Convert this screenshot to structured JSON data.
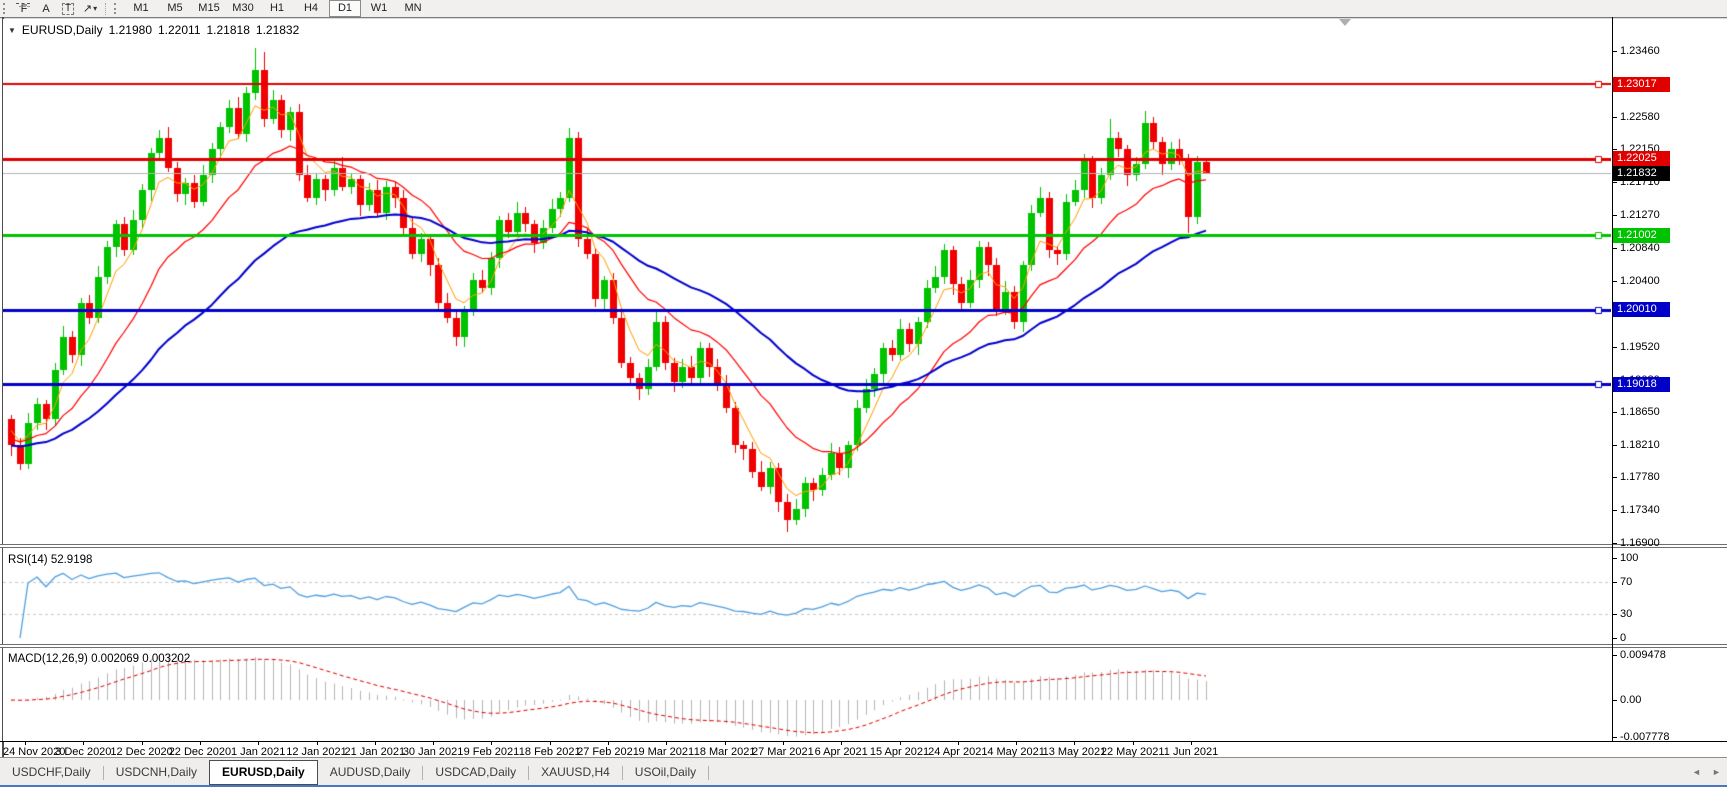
{
  "toolbar": {
    "tools": [
      {
        "name": "fibonacci-tool",
        "glyph": "F"
      },
      {
        "name": "text-tool",
        "glyph": "A"
      },
      {
        "name": "text-label-tool",
        "glyph": "T"
      },
      {
        "name": "arrows-tool",
        "glyph": "↗"
      }
    ],
    "dropdown_caret": "▾",
    "timeframes": [
      {
        "label": "M1",
        "active": false
      },
      {
        "label": "M5",
        "active": false
      },
      {
        "label": "M15",
        "active": false
      },
      {
        "label": "M30",
        "active": false
      },
      {
        "label": "H1",
        "active": false
      },
      {
        "label": "H4",
        "active": false
      },
      {
        "label": "D1",
        "active": true
      },
      {
        "label": "W1",
        "active": false
      },
      {
        "label": "MN",
        "active": false
      }
    ]
  },
  "chart": {
    "collapse_glyph": "▼",
    "symbol_period": "EURUSD,Daily",
    "open": "1.21980",
    "high": "1.22011",
    "low": "1.21818",
    "close": "1.21832",
    "price_ticks": [
      "1.23460",
      "1.23020",
      "1.22580",
      "1.22150",
      "1.21710",
      "1.21270",
      "1.20840",
      "1.20400",
      "1.19960",
      "1.19520",
      "1.19080",
      "1.18650",
      "1.18210",
      "1.17780",
      "1.17340",
      "1.16900"
    ],
    "hlines": [
      {
        "label": "1.23017",
        "price": 1.23017,
        "color": "#e00000",
        "thickness": 2
      },
      {
        "label": "1.22025",
        "price": 1.22025,
        "color": "#e00000",
        "thickness": 3
      },
      {
        "label": "1.21002",
        "price": 1.21002,
        "color": "#00c300",
        "thickness": 3
      },
      {
        "label": "1.20010",
        "price": 1.2001,
        "color": "#0000c8",
        "thickness": 3
      },
      {
        "label": "1.19018",
        "price": 1.19018,
        "color": "#0000c8",
        "thickness": 3
      }
    ],
    "current": {
      "label": "1.21832",
      "price": 1.21832,
      "badge_color": "#000000",
      "line_color": "#b3b3b3"
    },
    "candle_up_color": "#00c300",
    "candle_down_color": "#f00000"
  },
  "rsi": {
    "label": "RSI(14) 52.9198",
    "axis": [
      {
        "label": "100",
        "value": 100
      },
      {
        "label": "70",
        "value": 70
      },
      {
        "label": "30",
        "value": 30
      },
      {
        "label": "0",
        "value": 0
      }
    ],
    "levels": [
      70,
      30
    ],
    "line_color": "#4f9fe0",
    "level_color": "#c9c9c9"
  },
  "macd": {
    "label": "MACD(12,26,9) 0.002069 0.003202",
    "axis": [
      {
        "label": "0.009478",
        "value": 0.009478
      },
      {
        "label": "0.00",
        "value": 0.0
      },
      {
        "label": "-0.007778",
        "value": -0.007778
      }
    ],
    "histogram_color": "#b5b5b5",
    "signal_color": "#e00000"
  },
  "tabs": [
    {
      "label": "USDCHF,Daily",
      "active": false
    },
    {
      "label": "USDCNH,Daily",
      "active": false
    },
    {
      "label": "EURUSD,Daily",
      "active": true
    },
    {
      "label": "AUDUSD,Daily",
      "active": false
    },
    {
      "label": "USDCAD,Daily",
      "active": false
    },
    {
      "label": "XAUUSD,H4",
      "active": false
    },
    {
      "label": "USOil,Daily",
      "active": false
    }
  ],
  "tab_scroll": {
    "left": "◄",
    "right": "►"
  },
  "chart_data": {
    "type": "candlestick",
    "symbol": "EURUSD",
    "period": "Daily",
    "last_bar": {
      "open": 1.2198,
      "high": 1.22011,
      "low": 1.21818,
      "close": 1.21832
    },
    "y_visible": [
      1.1687,
      1.2389
    ],
    "x_labels": [
      "24 Nov 2020",
      "3 Dec 2020",
      "12 Dec 2020",
      "22 Dec 2020",
      "1 Jan 2021",
      "12 Jan 2021",
      "21 Jan 2021",
      "30 Jan 2021",
      "9 Feb 2021",
      "18 Feb 2021",
      "27 Feb 2021",
      "9 Mar 2021",
      "18 Mar 2021",
      "27 Mar 2021",
      "6 Apr 2021",
      "15 Apr 2021",
      "24 Apr 2021",
      "4 May 2021",
      "13 May 2021",
      "22 May 2021",
      "1 Jun 2021"
    ],
    "overlays": [
      {
        "name": "ma-fast",
        "type": "ema",
        "period": 5,
        "color": "#ff9d00",
        "width": 1,
        "seed": 1.185
      },
      {
        "name": "ma-medium",
        "type": "ema",
        "period": 16,
        "color": "#ff0000",
        "width": 1.2,
        "seed": 1.183
      },
      {
        "name": "ma-slow",
        "type": "ema",
        "period": 40,
        "color": "#0000cc",
        "width": 2,
        "seed": 1.182
      }
    ],
    "indicators": [
      {
        "name": "RSI",
        "params": [
          14
        ],
        "value": 52.9198
      },
      {
        "name": "MACD",
        "params": [
          12,
          26,
          9
        ],
        "values": [
          0.002069,
          0.003202
        ]
      }
    ],
    "candles": [
      [
        1.1855,
        1.1861,
        1.1806,
        1.182
      ],
      [
        1.182,
        1.183,
        1.1787,
        1.1795
      ],
      [
        1.1795,
        1.1864,
        1.1789,
        1.185
      ],
      [
        1.185,
        1.1883,
        1.184,
        1.1875
      ],
      [
        1.1875,
        1.1881,
        1.1841,
        1.1855
      ],
      [
        1.1855,
        1.193,
        1.1847,
        1.192
      ],
      [
        1.192,
        1.1979,
        1.1914,
        1.1965
      ],
      [
        1.1965,
        1.1973,
        1.193,
        1.194
      ],
      [
        1.194,
        1.2016,
        1.1926,
        1.201
      ],
      [
        1.201,
        1.202,
        1.1982,
        1.199
      ],
      [
        1.199,
        1.2059,
        1.1984,
        1.2045
      ],
      [
        1.2045,
        1.2093,
        1.2035,
        1.2085
      ],
      [
        1.2085,
        1.2121,
        1.2071,
        1.2115
      ],
      [
        1.2115,
        1.2125,
        1.2072,
        1.208
      ],
      [
        1.208,
        1.2134,
        1.2074,
        1.212
      ],
      [
        1.212,
        1.2168,
        1.211,
        1.216
      ],
      [
        1.216,
        1.2216,
        1.2146,
        1.221
      ],
      [
        1.221,
        1.224,
        1.2202,
        1.223
      ],
      [
        1.223,
        1.2244,
        1.2184,
        1.219
      ],
      [
        1.219,
        1.2198,
        1.2145,
        1.2155
      ],
      [
        1.2155,
        1.2176,
        1.2141,
        1.217
      ],
      [
        1.217,
        1.218,
        1.2137,
        1.2145
      ],
      [
        1.2145,
        1.2194,
        1.2139,
        1.218
      ],
      [
        1.218,
        1.2223,
        1.217,
        1.2215
      ],
      [
        1.2215,
        1.2251,
        1.2201,
        1.2245
      ],
      [
        1.2245,
        1.228,
        1.2237,
        1.227
      ],
      [
        1.227,
        1.2284,
        1.2229,
        1.2235
      ],
      [
        1.2235,
        1.2298,
        1.2225,
        1.229
      ],
      [
        1.229,
        1.235,
        1.228,
        1.232
      ],
      [
        1.232,
        1.2345,
        1.2245,
        1.2255
      ],
      [
        1.2255,
        1.2294,
        1.2249,
        1.228
      ],
      [
        1.228,
        1.2288,
        1.223,
        1.224
      ],
      [
        1.224,
        1.2271,
        1.2226,
        1.2265
      ],
      [
        1.2265,
        1.2275,
        1.2172,
        1.218
      ],
      [
        1.218,
        1.2194,
        1.2144,
        1.215
      ],
      [
        1.215,
        1.2183,
        1.214,
        1.2175
      ],
      [
        1.2175,
        1.2181,
        1.2146,
        1.216
      ],
      [
        1.216,
        1.22,
        1.2152,
        1.219
      ],
      [
        1.219,
        1.2204,
        1.2159,
        1.2165
      ],
      [
        1.2165,
        1.2183,
        1.2155,
        1.2175
      ],
      [
        1.2175,
        1.2181,
        1.2126,
        1.214
      ],
      [
        1.214,
        1.217,
        1.2132,
        1.216
      ],
      [
        1.216,
        1.2174,
        1.2124,
        1.213
      ],
      [
        1.213,
        1.2173,
        1.212,
        1.2165
      ],
      [
        1.2165,
        1.2171,
        1.2136,
        1.215
      ],
      [
        1.215,
        1.216,
        1.2102,
        1.211
      ],
      [
        1.211,
        1.2124,
        1.2069,
        1.2075
      ],
      [
        1.2075,
        1.2103,
        1.2065,
        1.2095
      ],
      [
        1.2095,
        1.2101,
        1.2046,
        1.206
      ],
      [
        1.206,
        1.207,
        1.2002,
        1.201
      ],
      [
        1.201,
        1.2024,
        1.1984,
        1.199
      ],
      [
        1.199,
        1.1998,
        1.1952,
        1.1965
      ],
      [
        1.1965,
        1.2006,
        1.1951,
        1.2
      ],
      [
        1.2,
        1.205,
        1.1992,
        1.204
      ],
      [
        1.204,
        1.2054,
        1.2024,
        1.203
      ],
      [
        1.203,
        1.2078,
        1.202,
        1.207
      ],
      [
        1.207,
        1.2126,
        1.2056,
        1.212
      ],
      [
        1.212,
        1.213,
        1.2097,
        1.2105
      ],
      [
        1.2105,
        1.2144,
        1.2099,
        1.213
      ],
      [
        1.213,
        1.2138,
        1.2105,
        1.2115
      ],
      [
        1.2115,
        1.2121,
        1.2076,
        1.209
      ],
      [
        1.209,
        1.212,
        1.2082,
        1.211
      ],
      [
        1.211,
        1.2149,
        1.2104,
        1.2135
      ],
      [
        1.2135,
        1.2158,
        1.2125,
        1.215
      ],
      [
        1.215,
        1.2243,
        1.2145,
        1.223
      ],
      [
        1.223,
        1.2238,
        1.2085,
        1.2095
      ],
      [
        1.2095,
        1.2109,
        1.2069,
        1.2075
      ],
      [
        1.2075,
        1.2083,
        1.2005,
        1.2015
      ],
      [
        1.2015,
        1.2046,
        1.2001,
        1.204
      ],
      [
        1.204,
        1.205,
        1.1982,
        1.199
      ],
      [
        1.199,
        1.2004,
        1.1924,
        1.193
      ],
      [
        1.193,
        1.1938,
        1.19,
        1.191
      ],
      [
        1.191,
        1.1916,
        1.1881,
        1.1895
      ],
      [
        1.1895,
        1.1935,
        1.1887,
        1.1925
      ],
      [
        1.1925,
        1.1999,
        1.1919,
        1.1985
      ],
      [
        1.1985,
        1.1993,
        1.192,
        1.193
      ],
      [
        1.193,
        1.1936,
        1.1891,
        1.1905
      ],
      [
        1.1905,
        1.1935,
        1.1897,
        1.1925
      ],
      [
        1.1925,
        1.1939,
        1.1904,
        1.191
      ],
      [
        1.191,
        1.1958,
        1.19,
        1.195
      ],
      [
        1.195,
        1.1956,
        1.1911,
        1.1925
      ],
      [
        1.1925,
        1.1935,
        1.1892,
        1.19
      ],
      [
        1.19,
        1.1914,
        1.1864,
        1.187
      ],
      [
        1.187,
        1.1878,
        1.181,
        1.182
      ],
      [
        1.182,
        1.1826,
        1.1801,
        1.1815
      ],
      [
        1.1815,
        1.1825,
        1.1777,
        1.1785
      ],
      [
        1.1785,
        1.1799,
        1.1759,
        1.1765
      ],
      [
        1.1765,
        1.1798,
        1.1755,
        1.179
      ],
      [
        1.179,
        1.1796,
        1.1731,
        1.1745
      ],
      [
        1.1745,
        1.1755,
        1.1704,
        1.172
      ],
      [
        1.172,
        1.1749,
        1.1714,
        1.1735
      ],
      [
        1.1735,
        1.1778,
        1.1725,
        1.177
      ],
      [
        1.177,
        1.1776,
        1.1746,
        1.176
      ],
      [
        1.176,
        1.179,
        1.1752,
        1.178
      ],
      [
        1.178,
        1.1824,
        1.1774,
        1.181
      ],
      [
        1.181,
        1.1818,
        1.178,
        1.179
      ],
      [
        1.179,
        1.1826,
        1.1776,
        1.182
      ],
      [
        1.182,
        1.188,
        1.1812,
        1.187
      ],
      [
        1.187,
        1.1909,
        1.1864,
        1.1895
      ],
      [
        1.1895,
        1.1923,
        1.1885,
        1.1915
      ],
      [
        1.1915,
        1.1956,
        1.1901,
        1.195
      ],
      [
        1.195,
        1.196,
        1.1932,
        1.194
      ],
      [
        1.194,
        1.1989,
        1.1934,
        1.1975
      ],
      [
        1.1975,
        1.1983,
        1.1945,
        1.1955
      ],
      [
        1.1955,
        1.1991,
        1.1941,
        1.1985
      ],
      [
        1.1985,
        1.204,
        1.1977,
        1.203
      ],
      [
        1.203,
        1.2059,
        1.2024,
        1.2045
      ],
      [
        1.2045,
        1.2088,
        1.2035,
        1.208
      ],
      [
        1.208,
        1.2086,
        1.2021,
        1.2035
      ],
      [
        1.2035,
        1.2045,
        1.2002,
        1.201
      ],
      [
        1.201,
        1.2054,
        1.2004,
        1.204
      ],
      [
        1.204,
        1.2093,
        1.203,
        1.2085
      ],
      [
        1.2085,
        1.2091,
        1.2046,
        1.206
      ],
      [
        1.206,
        1.207,
        1.1992,
        1.2
      ],
      [
        1.2,
        1.2039,
        1.1994,
        1.2025
      ],
      [
        1.2025,
        1.2033,
        1.1975,
        1.1985
      ],
      [
        1.1985,
        1.2066,
        1.1971,
        1.206
      ],
      [
        1.206,
        1.214,
        1.2052,
        1.213
      ],
      [
        1.213,
        1.2164,
        1.2124,
        1.215
      ],
      [
        1.215,
        1.2158,
        1.207,
        1.208
      ],
      [
        1.208,
        1.2086,
        1.2061,
        1.2075
      ],
      [
        1.2075,
        1.2155,
        1.2067,
        1.2145
      ],
      [
        1.2145,
        1.2174,
        1.2139,
        1.216
      ],
      [
        1.216,
        1.2208,
        1.215,
        1.22
      ],
      [
        1.22,
        1.2206,
        1.2136,
        1.215
      ],
      [
        1.215,
        1.219,
        1.2142,
        1.218
      ],
      [
        1.218,
        1.2255,
        1.2174,
        1.223
      ],
      [
        1.223,
        1.2238,
        1.2205,
        1.2215
      ],
      [
        1.2215,
        1.2221,
        1.2166,
        1.218
      ],
      [
        1.218,
        1.2205,
        1.2172,
        1.2195
      ],
      [
        1.2195,
        1.2266,
        1.2189,
        1.225
      ],
      [
        1.225,
        1.2258,
        1.2215,
        1.2225
      ],
      [
        1.2225,
        1.2231,
        1.2181,
        1.2195
      ],
      [
        1.2195,
        1.2225,
        1.2187,
        1.2215
      ],
      [
        1.2215,
        1.2229,
        1.2194,
        1.22
      ],
      [
        1.22,
        1.2208,
        1.2104,
        1.2125
      ],
      [
        1.2125,
        1.2206,
        1.2115,
        1.2198
      ],
      [
        1.2198,
        1.22011,
        1.21818,
        1.21832
      ]
    ]
  }
}
